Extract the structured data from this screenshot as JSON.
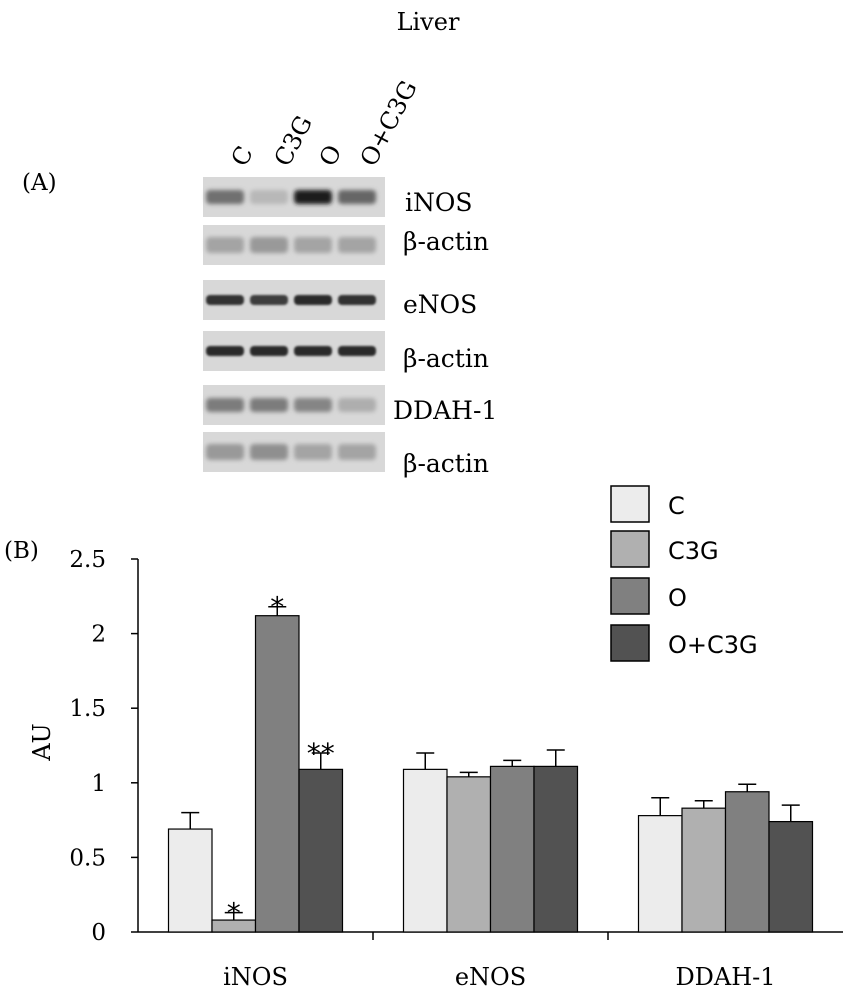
{
  "panel_a": {
    "title": "Liver",
    "label": "(A)",
    "lanes": [
      "C",
      "C3G",
      "O",
      "O+C3G"
    ],
    "blots": [
      {
        "label": "iNOS",
        "band_intensity": [
          0.55,
          0.2,
          0.95,
          0.6
        ],
        "band_style": "diffuse"
      },
      {
        "label": "β-actin",
        "band_intensity": [
          0.3,
          0.35,
          0.3,
          0.3
        ],
        "band_style": "faint"
      },
      {
        "label": "eNOS",
        "band_intensity": [
          0.85,
          0.8,
          0.9,
          0.85
        ],
        "band_style": "sharp"
      },
      {
        "label": "β-actin",
        "band_intensity": [
          0.9,
          0.9,
          0.9,
          0.9
        ],
        "band_style": "sharp"
      },
      {
        "label": "DDAH-1",
        "band_intensity": [
          0.5,
          0.5,
          0.45,
          0.25
        ],
        "band_style": "diffuse"
      },
      {
        "label": "β-actin",
        "band_intensity": [
          0.35,
          0.4,
          0.3,
          0.3
        ],
        "band_style": "faint"
      }
    ]
  },
  "panel_b_label": "(B)",
  "chart_data": {
    "type": "bar",
    "categories": [
      "iNOS",
      "eNOS",
      "DDAH-1"
    ],
    "ylabel": "AU",
    "xlabel": "",
    "ylim": [
      0,
      2.5
    ],
    "yticks": [
      0,
      0.5,
      1,
      1.5,
      2,
      2.5
    ],
    "ytick_labels": [
      "0",
      "0.5",
      "1",
      "1.5",
      "2",
      "2.5"
    ],
    "grid": false,
    "legend_position": "top-right",
    "series": [
      {
        "name": "C",
        "color": "#ececec",
        "values": [
          0.69,
          1.09,
          0.78
        ],
        "errors": [
          0.11,
          0.11,
          0.12
        ],
        "annotations": [
          "",
          "",
          ""
        ]
      },
      {
        "name": "C3G",
        "color": "#b0b0b0",
        "values": [
          0.08,
          1.04,
          0.83
        ],
        "errors": [
          0.05,
          0.03,
          0.05
        ],
        "annotations": [
          "*",
          "",
          ""
        ]
      },
      {
        "name": "O",
        "color": "#808080",
        "values": [
          2.12,
          1.11,
          0.94
        ],
        "errors": [
          0.06,
          0.04,
          0.05
        ],
        "annotations": [
          "*",
          "",
          ""
        ]
      },
      {
        "name": "O+C3G",
        "color": "#525252",
        "values": [
          1.09,
          1.11,
          0.74
        ],
        "errors": [
          0.11,
          0.11,
          0.11
        ],
        "annotations": [
          "**",
          "",
          ""
        ]
      }
    ]
  }
}
